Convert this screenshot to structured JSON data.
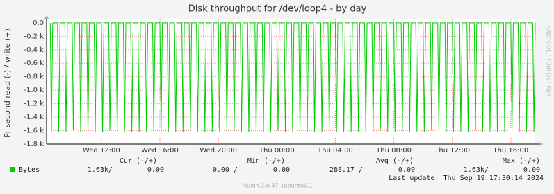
{
  "chart_data": {
    "type": "line",
    "title": "Disk throughput for /dev/loop4 - by day",
    "y_label": "Pr second read (-) / write (+)",
    "side_text": "RRDTOOL / TOBI OETIKER",
    "footer": "Munin 2.0.37-1ubuntu0.1",
    "last_update": "Last update: Thu Sep 19 17:30:14 2024",
    "x": [
      8.5,
      8.58,
      8.67,
      9,
      9.08,
      9.17,
      9.5,
      9.58,
      9.67,
      10,
      10.08,
      10.17,
      10.5,
      10.58,
      10.67,
      11,
      11.08,
      11.17,
      11.5,
      11.58,
      11.67,
      12,
      12.08,
      12.17,
      12.5,
      12.58,
      12.67,
      13,
      13.08,
      13.17,
      13.5,
      13.58,
      13.67,
      14,
      14.08,
      14.17,
      14.5,
      14.58,
      14.67,
      15,
      15.08,
      15.17,
      15.5,
      15.58,
      15.67,
      16,
      16.08,
      16.17,
      16.5,
      16.58,
      16.67,
      17,
      17.08,
      17.17,
      17.5,
      17.58,
      17.67,
      18,
      18.08,
      18.17,
      18.5,
      18.58,
      18.67,
      19,
      19.08,
      19.17,
      19.5,
      19.58,
      19.67,
      20,
      20.08,
      20.17,
      20.5,
      20.58,
      20.67,
      21,
      21.08,
      21.17,
      21.5,
      21.58,
      21.67,
      22,
      22.08,
      22.17,
      22.5,
      22.58,
      22.67,
      23,
      23.08,
      23.17,
      23.5,
      23.58,
      23.67,
      24,
      24.08,
      24.17,
      24.5,
      24.58,
      24.67,
      25,
      25.08,
      25.17,
      25.5,
      25.58,
      25.67,
      26,
      26.08,
      26.17,
      26.5,
      26.58,
      26.67,
      27,
      27.08,
      27.17,
      27.5,
      27.58,
      27.67,
      28,
      28.08,
      28.17,
      28.5,
      28.58,
      28.67,
      29,
      29.08,
      29.17,
      29.5,
      29.58,
      29.67,
      30,
      30.08,
      30.17,
      30.5,
      30.58,
      30.67,
      31,
      31.08,
      31.17,
      31.5,
      31.58,
      31.67,
      32,
      32.08,
      32.17,
      32.5,
      32.58,
      32.67,
      33,
      33.08,
      33.17,
      33.5,
      33.58,
      33.67,
      34,
      34.08,
      34.17,
      34.5,
      34.58,
      34.67,
      35,
      35.08,
      35.17,
      35.5,
      35.58,
      35.67,
      36,
      36.08,
      36.17,
      36.5,
      36.58,
      36.67,
      37,
      37.08,
      37.17,
      37.5,
      37.58,
      37.67,
      38,
      38.08,
      38.17,
      38.5,
      38.58,
      38.67,
      39,
      39.08,
      39.17,
      39.5,
      39.58,
      39.67,
      40,
      40.08,
      40.17,
      40.5,
      40.58,
      40.67,
      41,
      41.08,
      41.17,
      41.5,
      41.58,
      41.67
    ],
    "series": [
      {
        "name": "Bytes",
        "color": "#00cc00",
        "values": [
          0,
          -1620,
          0,
          0,
          -1620,
          0,
          0,
          -1620,
          0,
          0,
          -1600,
          0,
          0,
          -1620,
          0,
          0,
          -1620,
          0,
          0,
          -1620,
          0,
          0,
          -1620,
          0,
          0,
          -1600,
          0,
          0,
          -1620,
          0,
          0,
          -1620,
          0,
          0,
          -1620,
          0,
          0,
          -1620,
          0,
          0,
          -1620,
          0,
          0,
          -1600,
          0,
          0,
          -1620,
          0,
          0,
          -1620,
          0,
          0,
          -1620,
          0,
          0,
          -1620,
          0,
          0,
          -1600,
          0,
          0,
          -1620,
          0,
          0,
          -1620,
          0,
          0,
          -1620,
          0,
          0,
          -1620,
          0,
          0,
          -1620,
          0,
          0,
          -1600,
          0,
          0,
          -1620,
          0,
          0,
          -1620,
          0,
          0,
          -1620,
          0,
          0,
          -1620,
          0,
          0,
          -1620,
          0,
          0,
          -1600,
          0,
          0,
          -1620,
          0,
          0,
          -1620,
          0,
          0,
          -1620,
          0,
          0,
          -1620,
          0,
          0,
          -1620,
          0,
          0,
          -1620,
          0,
          0,
          -1600,
          0,
          0,
          -1620,
          0,
          0,
          -1620,
          0,
          0,
          -1620,
          0,
          0,
          -1620,
          0,
          0,
          -1620,
          0,
          0,
          -1620,
          0,
          0,
          -1600,
          0,
          0,
          -1620,
          0,
          0,
          -1620,
          0,
          0,
          -1620,
          0,
          0,
          -1620,
          0,
          0,
          -1620,
          0,
          0,
          -1620,
          0,
          0,
          -1600,
          0,
          0,
          -1620,
          0,
          0,
          -1620,
          0,
          0,
          -1620,
          0,
          0,
          -1620,
          0,
          0,
          -1620,
          0,
          0,
          -1600,
          0,
          0,
          -1620,
          0,
          0,
          -1620,
          0,
          0,
          -1620,
          0,
          0,
          -1620,
          0,
          0,
          -1620,
          0,
          0,
          -1620,
          0,
          0,
          -1620,
          0,
          0,
          -1620,
          0
        ]
      }
    ],
    "xlim": [
      8.25,
      41.67
    ],
    "xticks": [
      {
        "value": 12,
        "label": "Wed 12:00"
      },
      {
        "value": 16,
        "label": "Wed 16:00"
      },
      {
        "value": 20,
        "label": "Wed 20:00"
      },
      {
        "value": 24,
        "label": "Thu 00:00"
      },
      {
        "value": 28,
        "label": "Thu 04:00"
      },
      {
        "value": 32,
        "label": "Thu 08:00"
      },
      {
        "value": 36,
        "label": "Thu 12:00"
      },
      {
        "value": 40,
        "label": "Thu 16:00"
      }
    ],
    "ylim": [
      -1800,
      50
    ],
    "yticks": [
      {
        "value": 0,
        "label": "0.0"
      },
      {
        "value": -200,
        "label": "-0.2 k"
      },
      {
        "value": -400,
        "label": "-0.4 k"
      },
      {
        "value": -600,
        "label": "-0.6 k"
      },
      {
        "value": -800,
        "label": "-0.8 k"
      },
      {
        "value": -1000,
        "label": "-1.0 k"
      },
      {
        "value": -1200,
        "label": "-1.2 k"
      },
      {
        "value": -1400,
        "label": "-1.4 k"
      },
      {
        "value": -1600,
        "label": "-1.6 k"
      },
      {
        "value": -1800,
        "label": "-1.8 k"
      }
    ],
    "grid": true,
    "legend_table": {
      "headers": [
        "Cur (-/+)",
        "Min (-/+)",
        "Avg (-/+)",
        "Max (-/+)"
      ],
      "row": [
        "1.63k/",
        "0.00",
        "0.00 /",
        "0.00",
        "288.17 /",
        "0.00",
        "1.63k/",
        "0.00"
      ]
    }
  }
}
